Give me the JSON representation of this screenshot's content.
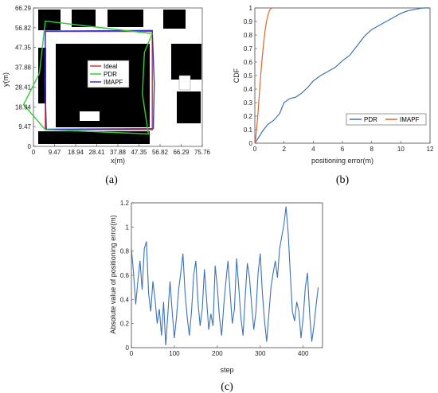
{
  "chart_data": [
    {
      "panel": "a",
      "type": "line",
      "caption": "(a)",
      "xlabel": "x(m)",
      "ylabel": "y(m)",
      "xlim": [
        0,
        85.23
      ],
      "ylim": [
        0,
        66.29
      ],
      "xticks": [
        "0",
        "9.47",
        "18.94",
        "28.41",
        "37.88",
        "47.35",
        "56.82",
        "66.29",
        "75.76"
      ],
      "yticks": [
        "0",
        "9.47",
        "18.94",
        "28.41",
        "37.88",
        "47.35",
        "56.82",
        "66.29"
      ],
      "legend": [
        "Ideal",
        "PDR",
        "IMAPF"
      ],
      "colors": {
        "Ideal": "#e03030",
        "PDR": "#33cc33",
        "IMAPF": "#3333cc"
      },
      "series": [
        {
          "name": "Ideal",
          "x": [
            6,
            60,
            60,
            6,
            6
          ],
          "y": [
            8,
            8,
            55,
            55,
            8
          ]
        },
        {
          "name": "IMAPF",
          "x": [
            6.5,
            60.5,
            61,
            60,
            6,
            5.8,
            6.5
          ],
          "y": [
            8.2,
            8.5,
            30,
            55.5,
            55.2,
            30,
            8.2
          ]
        },
        {
          "name": "PDR",
          "x": [
            6,
            58,
            55,
            56,
            60,
            6,
            3,
            -5,
            6
          ],
          "y": [
            8,
            6,
            25,
            45,
            54,
            60,
            35,
            20,
            8
          ]
        }
      ]
    },
    {
      "panel": "b",
      "type": "line",
      "caption": "(b)",
      "xlabel": "positioning error(m)",
      "ylabel": "CDF",
      "xlim": [
        0,
        12
      ],
      "ylim": [
        0,
        1
      ],
      "xticks": [
        "0",
        "2",
        "4",
        "6",
        "8",
        "10",
        "12"
      ],
      "yticks": [
        "0",
        "0.1",
        "0.2",
        "0.3",
        "0.4",
        "0.5",
        "0.6",
        "0.7",
        "0.8",
        "0.9",
        "1"
      ],
      "legend": [
        "PDR",
        "IMAPF"
      ],
      "colors": {
        "PDR": "#3b72b8",
        "IMAPF": "#d9682a"
      },
      "series": [
        {
          "name": "PDR",
          "x": [
            0,
            0.3,
            0.6,
            0.9,
            1.3,
            1.7,
            2.0,
            2.4,
            2.8,
            3.2,
            3.6,
            4.0,
            4.5,
            5.0,
            5.5,
            6.0,
            6.5,
            7.0,
            7.5,
            8.0,
            8.5,
            9.0,
            9.5,
            10.0,
            10.5,
            11.0,
            11.5,
            12.0
          ],
          "y": [
            0,
            0.05,
            0.1,
            0.14,
            0.17,
            0.22,
            0.3,
            0.33,
            0.34,
            0.37,
            0.41,
            0.46,
            0.5,
            0.53,
            0.56,
            0.61,
            0.65,
            0.72,
            0.79,
            0.84,
            0.87,
            0.9,
            0.93,
            0.96,
            0.98,
            0.99,
            1.0,
            1.0
          ]
        },
        {
          "name": "IMAPF",
          "x": [
            0,
            0.05,
            0.1,
            0.2,
            0.3,
            0.4,
            0.5,
            0.6,
            0.7,
            0.8,
            0.9,
            1.0,
            1.1,
            1.2
          ],
          "y": [
            0,
            0.03,
            0.08,
            0.2,
            0.35,
            0.5,
            0.63,
            0.74,
            0.83,
            0.9,
            0.95,
            0.98,
            0.995,
            1.0
          ]
        }
      ]
    },
    {
      "panel": "c",
      "type": "line",
      "caption": "(c)",
      "xlabel": "step",
      "ylabel": "Absolute value of positioning error(m)",
      "xlim": [
        0,
        445
      ],
      "ylim": [
        0,
        1.2
      ],
      "xticks": [
        "0",
        "100",
        "200",
        "300",
        "400"
      ],
      "yticks": [
        "0",
        "0.2",
        "0.4",
        "0.6",
        "0.8",
        "1",
        "1.2"
      ],
      "colors": {
        "IMAPF": "#3b72b8"
      },
      "series": [
        {
          "name": "",
          "x": [
            0,
            5,
            10,
            15,
            20,
            25,
            30,
            35,
            40,
            45,
            50,
            55,
            60,
            65,
            70,
            75,
            80,
            85,
            90,
            95,
            100,
            105,
            110,
            115,
            120,
            125,
            130,
            135,
            140,
            145,
            150,
            155,
            160,
            165,
            170,
            175,
            180,
            185,
            190,
            195,
            200,
            205,
            210,
            215,
            220,
            225,
            230,
            235,
            240,
            245,
            250,
            255,
            260,
            265,
            270,
            275,
            280,
            285,
            290,
            295,
            300,
            305,
            310,
            315,
            320,
            325,
            330,
            335,
            340,
            345,
            350,
            355,
            360,
            365,
            370,
            375,
            380,
            385,
            390,
            395,
            400,
            405,
            410,
            415,
            420,
            425,
            430,
            435
          ],
          "y": [
            0.82,
            0.62,
            0.36,
            0.55,
            0.72,
            0.48,
            0.82,
            0.88,
            0.45,
            0.3,
            0.55,
            0.4,
            0.2,
            0.32,
            0.1,
            0.38,
            0.02,
            0.28,
            0.55,
            0.3,
            0.08,
            0.25,
            0.48,
            0.62,
            0.78,
            0.45,
            0.25,
            0.1,
            0.3,
            0.6,
            0.72,
            0.38,
            0.18,
            0.32,
            0.65,
            0.4,
            0.15,
            0.28,
            0.18,
            0.68,
            0.5,
            0.25,
            0.1,
            0.35,
            0.55,
            0.72,
            0.45,
            0.2,
            0.32,
            0.74,
            0.5,
            0.25,
            0.1,
            0.42,
            0.7,
            0.58,
            0.35,
            0.15,
            0.3,
            0.62,
            0.78,
            0.45,
            0.22,
            0.05,
            0.28,
            0.5,
            0.62,
            0.72,
            0.58,
            0.82,
            0.92,
            1.02,
            1.17,
            0.95,
            0.6,
            0.3,
            0.22,
            0.38,
            0.3,
            0.08,
            0.25,
            0.5,
            0.62,
            0.28,
            0.05,
            0.18,
            0.35,
            0.5
          ]
        }
      ]
    }
  ]
}
